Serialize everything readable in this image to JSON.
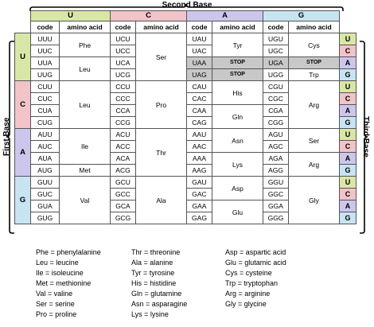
{
  "titles": {
    "second_base": "Second Base",
    "first_base": "First Base",
    "third_base": "Third Base"
  },
  "bases": [
    "U",
    "C",
    "A",
    "G"
  ],
  "column_headers": {
    "code": "code",
    "amino_acid": "amino acid"
  },
  "colors": {
    "U": "#d9e7a6",
    "C": "#f2c3c8",
    "A": "#cdc6ec",
    "G": "#c7e4f1",
    "stop_highlight": "#c8c8c8"
  },
  "rows": [
    {
      "first": "U",
      "codons": [
        [
          "UUU",
          "UUC",
          "UUA",
          "UUG"
        ],
        [
          "UCU",
          "UCC",
          "UCA",
          "UCG"
        ],
        [
          "UAU",
          "UAC",
          "UAA",
          "UAG"
        ],
        [
          "UGU",
          "UGC",
          "UGA",
          "UGG"
        ]
      ],
      "aminos": [
        [
          {
            "span": 2,
            "text": "Phe"
          },
          {
            "span": 2,
            "text": "Leu"
          }
        ],
        [
          {
            "span": 4,
            "text": "Ser"
          }
        ],
        [
          {
            "span": 2,
            "text": "Tyr"
          },
          {
            "span": 1,
            "text": "STOP",
            "stop": true
          },
          {
            "span": 1,
            "text": "STOP",
            "stop": true
          }
        ],
        [
          {
            "span": 2,
            "text": "Cys"
          },
          {
            "span": 1,
            "text": "STOP",
            "stop": true
          },
          {
            "span": 1,
            "text": "Trp"
          }
        ]
      ]
    },
    {
      "first": "C",
      "codons": [
        [
          "CUU",
          "CUC",
          "CUA",
          "CUG"
        ],
        [
          "CCU",
          "CCC",
          "CCA",
          "CCG"
        ],
        [
          "CAU",
          "CAC",
          "CAA",
          "CAG"
        ],
        [
          "CGU",
          "CGC",
          "CGA",
          "CGG"
        ]
      ],
      "aminos": [
        [
          {
            "span": 4,
            "text": "Leu"
          }
        ],
        [
          {
            "span": 4,
            "text": "Pro"
          }
        ],
        [
          {
            "span": 2,
            "text": "His"
          },
          {
            "span": 2,
            "text": "Gln"
          }
        ],
        [
          {
            "span": 4,
            "text": "Arg"
          }
        ]
      ]
    },
    {
      "first": "A",
      "codons": [
        [
          "AUU",
          "AUC",
          "AUA",
          "AUG"
        ],
        [
          "ACU",
          "ACC",
          "ACA",
          "ACG"
        ],
        [
          "AAU",
          "AAC",
          "AAA",
          "AAG"
        ],
        [
          "AGU",
          "AGC",
          "AGA",
          "AGG"
        ]
      ],
      "aminos": [
        [
          {
            "span": 3,
            "text": "Ile"
          },
          {
            "span": 1,
            "text": "Met"
          }
        ],
        [
          {
            "span": 4,
            "text": "Thr"
          }
        ],
        [
          {
            "span": 2,
            "text": "Asn"
          },
          {
            "span": 2,
            "text": "Lys"
          }
        ],
        [
          {
            "span": 2,
            "text": "Ser"
          },
          {
            "span": 2,
            "text": "Arg"
          }
        ]
      ]
    },
    {
      "first": "G",
      "codons": [
        [
          "GUU",
          "GUC",
          "GUA",
          "GUG"
        ],
        [
          "GCU",
          "GCC",
          "GCA",
          "GCG"
        ],
        [
          "GAU",
          "GAC",
          "GAA",
          "GAG"
        ],
        [
          "GGU",
          "GGC",
          "GGA",
          "GGG"
        ]
      ],
      "aminos": [
        [
          {
            "span": 4,
            "text": "Val"
          }
        ],
        [
          {
            "span": 4,
            "text": "Ala"
          }
        ],
        [
          {
            "span": 2,
            "text": "Asp"
          },
          {
            "span": 2,
            "text": "Glu"
          }
        ],
        [
          {
            "span": 4,
            "text": "Gly"
          }
        ]
      ]
    }
  ],
  "stop_codons": [
    "UAA",
    "UAG",
    "UGA"
  ],
  "legend": [
    [
      "Phe = phenylalanine",
      "Leu = leucine",
      "Ile = isoleucine",
      "Met = methionine",
      "Val = valine",
      "Ser = serine",
      "Pro = proline"
    ],
    [
      "Thr = threonine",
      "Ala = alanine",
      "Tyr = tyrosine",
      "His = histidine",
      "Gln = glutamine",
      "Asn = asparagine",
      "Lys = lysine"
    ],
    [
      "Asp = aspartic acid",
      "Glu = glutamic acid",
      "Cys = cysteine",
      "Trp = tryptophan",
      "Arg = arginine",
      "Gly = glycine"
    ]
  ]
}
